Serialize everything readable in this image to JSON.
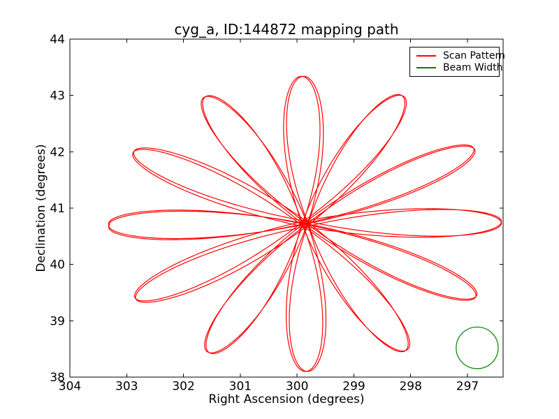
{
  "figure": {
    "background": "#ffffff",
    "text_color": "#000000",
    "frame_color": "#000000"
  },
  "chart_data": {
    "type": "line",
    "title": "cyg_a, ID:144872 mapping path",
    "xlabel": "Right Ascension (degrees)",
    "ylabel": "Declination (degrees)",
    "grid": false,
    "x_axis": {
      "ticks": [
        304,
        303,
        302,
        301,
        300,
        299,
        298,
        297
      ],
      "range": [
        304,
        296.373
      ],
      "inverted": true
    },
    "y_axis": {
      "ticks": [
        38,
        39,
        40,
        41,
        42,
        43,
        44
      ],
      "range": [
        38,
        44
      ]
    },
    "legend": {
      "position": "upper right",
      "entries": [
        {
          "label": "Scan Pattern",
          "color": "#ff0000"
        },
        {
          "label": "Beam Width",
          "color": "#008000"
        }
      ]
    },
    "series": [
      {
        "name": "Scan Pattern",
        "curve": "daisy_rose",
        "color": "#ff0000",
        "linewidth": 1.2,
        "center_ra_deg": 299.86,
        "center_dec_deg": 40.72,
        "petal_radius_deg": 2.62,
        "num_petals": 12,
        "radial_frequency": 6.01,
        "rotations": 2,
        "ra_stretch": 1.32,
        "center_wobble_deg": 0.05,
        "petal_tip_ra_extent_deg": 3.46,
        "petal_tip_dec_extent_deg": 2.62
      },
      {
        "name": "Beam Width",
        "curve": "circle",
        "color": "#008000",
        "linewidth": 1.2,
        "center_ra_deg": 296.83,
        "center_dec_deg": 38.52,
        "radius_deg": 0.37
      }
    ]
  }
}
